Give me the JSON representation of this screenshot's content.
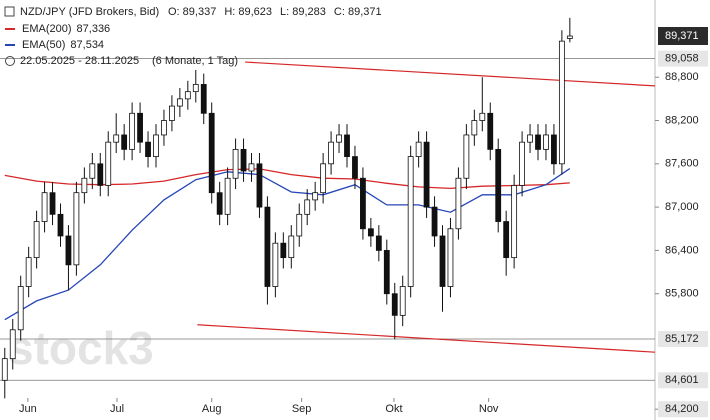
{
  "chart_data": {
    "type": "candlestick",
    "title": "NZD/JPY (JFD Brokers, Bid)",
    "ohlc_labels": [
      "O: 89,337",
      "H: 89,623",
      "L: 89,283",
      "C: 89,371"
    ],
    "date_range": "22.05.2025 - 28.11.2025",
    "period": "(6 Monate, 1 Tag)",
    "watermark": "stock3",
    "xlim": [
      -0.6,
      81.7
    ],
    "ylim": [
      84.05,
      89.87
    ],
    "xticks": [
      {
        "value": 2.9,
        "label": "Jun"
      },
      {
        "value": 14.1,
        "label": "Jul"
      },
      {
        "value": 26.0,
        "label": "Aug"
      },
      {
        "value": 37.3,
        "label": "Sep"
      },
      {
        "value": 48.9,
        "label": "Okt"
      },
      {
        "value": 60.8,
        "label": "Nov"
      }
    ],
    "yticks": [
      {
        "value": 88.8,
        "label": "88,800"
      },
      {
        "value": 88.2,
        "label": "88,200"
      },
      {
        "value": 87.6,
        "label": "87,600"
      },
      {
        "value": 87.0,
        "label": "87,000"
      },
      {
        "value": 86.4,
        "label": "86,400"
      },
      {
        "value": 85.8,
        "label": "85,800"
      },
      {
        "value": 84.2,
        "label": "84,200"
      }
    ],
    "candles": {
      "x": [
        0,
        1,
        2,
        3,
        4,
        5,
        6,
        7,
        8,
        9,
        10,
        11,
        12,
        13,
        14,
        15,
        16,
        17,
        18,
        19,
        20,
        21,
        22,
        23,
        24,
        25,
        26,
        27,
        28,
        29,
        30,
        31,
        32,
        33,
        34,
        35,
        36,
        37,
        38,
        39,
        40,
        41,
        42,
        43,
        44,
        45,
        46,
        47,
        48,
        49,
        50,
        51,
        52,
        53,
        54,
        55,
        56,
        57,
        58,
        59,
        60,
        61,
        62,
        63,
        64,
        65,
        66,
        67,
        68,
        69,
        70,
        71
      ],
      "open": [
        84.6,
        84.9,
        85.3,
        85.9,
        86.3,
        86.8,
        87.2,
        86.9,
        86.6,
        86.2,
        87.2,
        87.4,
        87.6,
        87.3,
        87.9,
        88.0,
        87.8,
        88.3,
        87.9,
        87.7,
        88.0,
        88.2,
        88.4,
        88.5,
        88.6,
        88.7,
        88.3,
        87.2,
        86.9,
        87.4,
        87.8,
        87.5,
        87.6,
        87.0,
        85.9,
        86.5,
        86.3,
        86.6,
        86.9,
        87.1,
        87.2,
        87.6,
        87.9,
        88.0,
        87.7,
        87.4,
        86.7,
        86.6,
        86.4,
        85.8,
        85.5,
        85.9,
        87.7,
        87.9,
        87.0,
        86.6,
        85.9,
        86.7,
        87.4,
        88.0,
        88.2,
        88.3,
        87.8,
        86.8,
        86.3,
        87.3,
        87.9,
        88.0,
        87.8,
        88.0,
        87.6,
        89.337
      ],
      "high": [
        85.05,
        85.45,
        86.05,
        86.45,
        86.95,
        87.35,
        87.35,
        87.05,
        86.75,
        87.35,
        87.55,
        87.75,
        87.75,
        88.05,
        88.3,
        88.15,
        88.45,
        88.45,
        88.05,
        88.15,
        88.35,
        88.55,
        88.65,
        88.75,
        88.9,
        88.85,
        88.45,
        87.35,
        87.55,
        87.95,
        87.95,
        87.75,
        87.75,
        87.15,
        86.65,
        86.65,
        86.75,
        87.05,
        87.25,
        87.35,
        87.75,
        88.05,
        88.15,
        88.15,
        87.85,
        87.55,
        86.85,
        86.75,
        86.55,
        85.95,
        86.05,
        87.85,
        88.05,
        88.05,
        87.15,
        86.75,
        86.85,
        87.55,
        88.15,
        88.35,
        88.8,
        88.45,
        87.95,
        86.95,
        87.45,
        88.05,
        88.15,
        88.15,
        88.15,
        88.15,
        89.45,
        89.623
      ],
      "low": [
        84.35,
        84.75,
        85.15,
        85.75,
        86.15,
        86.65,
        86.75,
        86.45,
        85.85,
        86.05,
        87.05,
        87.25,
        87.15,
        87.15,
        87.75,
        87.65,
        87.65,
        87.75,
        87.55,
        87.55,
        87.85,
        88.05,
        88.25,
        88.35,
        88.45,
        88.15,
        87.05,
        86.75,
        86.75,
        87.25,
        87.35,
        87.35,
        86.85,
        85.65,
        85.75,
        86.15,
        86.15,
        86.45,
        86.75,
        86.95,
        87.05,
        87.45,
        87.75,
        87.55,
        87.25,
        86.55,
        86.45,
        86.25,
        85.65,
        85.17,
        85.35,
        85.75,
        87.55,
        86.85,
        86.45,
        85.55,
        85.75,
        86.55,
        87.25,
        87.85,
        88.05,
        87.65,
        86.65,
        86.05,
        86.15,
        87.15,
        87.75,
        87.65,
        87.65,
        87.45,
        87.45,
        89.283
      ],
      "close": [
        84.9,
        85.3,
        85.9,
        86.3,
        86.8,
        87.2,
        86.9,
        86.6,
        86.2,
        87.2,
        87.4,
        87.6,
        87.3,
        87.9,
        88.0,
        87.8,
        88.3,
        87.9,
        87.7,
        88.0,
        88.2,
        88.4,
        88.5,
        88.6,
        88.7,
        88.3,
        87.2,
        86.9,
        87.4,
        87.8,
        87.5,
        87.6,
        87.0,
        85.9,
        86.5,
        86.3,
        86.6,
        86.9,
        87.1,
        87.2,
        87.6,
        87.9,
        88.0,
        87.7,
        87.4,
        86.7,
        86.6,
        86.4,
        85.8,
        85.5,
        85.9,
        87.7,
        87.9,
        87.0,
        86.6,
        85.9,
        86.7,
        87.4,
        88.0,
        88.2,
        88.3,
        87.8,
        86.8,
        86.3,
        87.3,
        87.9,
        88.0,
        87.8,
        88.0,
        87.6,
        89.3,
        89.371
      ]
    },
    "series": [
      {
        "name": "EMA(200)",
        "color": "#d62728",
        "legend_value": "87,336",
        "x": [
          0,
          4,
          8,
          12,
          16,
          20,
          24,
          28,
          32,
          36,
          40,
          44,
          48,
          52,
          56,
          60,
          64,
          68,
          71
        ],
        "values": [
          87.44,
          87.36,
          87.32,
          87.31,
          87.32,
          87.36,
          87.45,
          87.52,
          87.53,
          87.45,
          87.4,
          87.39,
          87.33,
          87.28,
          87.26,
          87.29,
          87.3,
          87.31,
          87.336
        ]
      },
      {
        "name": "EMA(50)",
        "color": "#2646b8",
        "legend_value": "87,534",
        "x": [
          0,
          4,
          8,
          12,
          16,
          20,
          24,
          28,
          32,
          36,
          40,
          44,
          48,
          52,
          56,
          60,
          64,
          68,
          71
        ],
        "values": [
          85.44,
          85.7,
          85.85,
          86.2,
          86.68,
          87.1,
          87.38,
          87.49,
          87.45,
          87.21,
          87.17,
          87.31,
          87.03,
          87.03,
          86.93,
          87.17,
          87.17,
          87.31,
          87.534
        ]
      }
    ],
    "trendlines": [
      {
        "color": "#d62728",
        "x": [
          30.2,
          81.7
        ],
        "values": [
          89.01,
          88.68
        ]
      },
      {
        "color": "#d62728",
        "x": [
          24.2,
          81.7
        ],
        "values": [
          85.37,
          84.99
        ]
      }
    ],
    "levels": [
      {
        "value": 89.058,
        "label": "89,058"
      },
      {
        "value": 85.172,
        "label": "85,172"
      },
      {
        "value": 84.601,
        "label": "84,601"
      }
    ],
    "last_price": {
      "value": 89.371,
      "label": "89,371"
    }
  }
}
